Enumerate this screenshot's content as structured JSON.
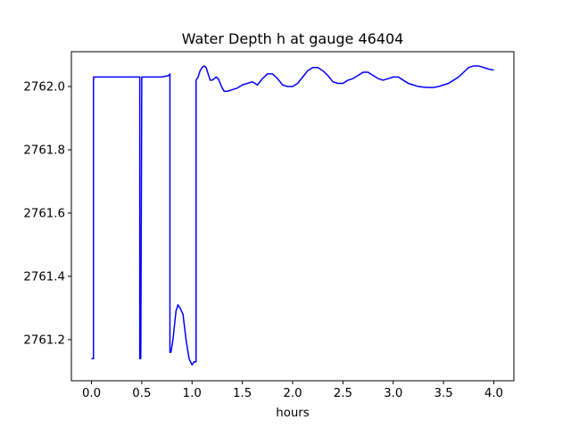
{
  "chart_data": {
    "type": "line",
    "title": "Water Depth h at gauge 46404",
    "xlabel": "hours",
    "ylabel": "",
    "xlim": [
      -0.2,
      4.2
    ],
    "ylim": [
      2761.07,
      2762.11
    ],
    "xticks": [
      0.0,
      0.5,
      1.0,
      1.5,
      2.0,
      2.5,
      3.0,
      3.5,
      4.0
    ],
    "xtick_labels": [
      "0.0",
      "0.5",
      "1.0",
      "1.5",
      "2.0",
      "2.5",
      "3.0",
      "3.5",
      "4.0"
    ],
    "yticks": [
      2761.2,
      2761.4,
      2761.6,
      2761.8,
      2762.0
    ],
    "ytick_labels": [
      "2761.2",
      "2761.4",
      "2761.6",
      "2761.8",
      "2762.0"
    ],
    "grid": false,
    "line_color": "#0000ff",
    "series": [
      {
        "x": [
          0.0,
          0.02,
          0.02,
          0.47,
          0.48,
          0.48,
          0.49,
          0.5,
          0.51,
          0.52,
          0.6,
          0.7,
          0.77,
          0.78,
          0.78,
          0.79,
          0.81,
          0.84,
          0.86,
          0.88,
          0.91,
          0.94,
          0.97,
          1.0,
          1.02,
          1.04,
          1.04,
          1.06,
          1.08,
          1.1,
          1.12,
          1.14,
          1.16,
          1.18,
          1.2,
          1.22,
          1.24,
          1.26,
          1.28,
          1.3,
          1.32,
          1.35,
          1.4,
          1.45,
          1.5,
          1.55,
          1.6,
          1.65,
          1.7,
          1.75,
          1.8,
          1.85,
          1.9,
          1.95,
          2.0,
          2.05,
          2.1,
          2.15,
          2.2,
          2.25,
          2.3,
          2.35,
          2.4,
          2.45,
          2.5,
          2.55,
          2.6,
          2.65,
          2.7,
          2.75,
          2.8,
          2.85,
          2.9,
          2.95,
          3.0,
          3.05,
          3.1,
          3.15,
          3.2,
          3.25,
          3.3,
          3.35,
          3.4,
          3.45,
          3.5,
          3.55,
          3.6,
          3.65,
          3.7,
          3.75,
          3.8,
          3.85,
          3.9,
          3.95,
          4.0
        ],
        "y": [
          2761.14,
          2761.14,
          2762.03,
          2762.03,
          2762.03,
          2761.14,
          2761.14,
          2762.03,
          2762.03,
          2762.03,
          2762.03,
          2762.03,
          2762.035,
          2762.04,
          2761.16,
          2761.16,
          2761.2,
          2761.29,
          2761.31,
          2761.3,
          2761.28,
          2761.2,
          2761.14,
          2761.12,
          2761.13,
          2761.13,
          2762.02,
          2762.03,
          2762.05,
          2762.06,
          2762.065,
          2762.06,
          2762.04,
          2762.02,
          2762.02,
          2762.025,
          2762.03,
          2762.025,
          2762.01,
          2761.995,
          2761.985,
          2761.985,
          2761.99,
          2761.995,
          2762.005,
          2762.01,
          2762.015,
          2762.005,
          2762.025,
          2762.04,
          2762.04,
          2762.025,
          2762.005,
          2762.0,
          2762.0,
          2762.01,
          2762.03,
          2762.05,
          2762.06,
          2762.06,
          2762.05,
          2762.035,
          2762.015,
          2762.01,
          2762.01,
          2762.02,
          2762.025,
          2762.035,
          2762.045,
          2762.045,
          2762.035,
          2762.025,
          2762.02,
          2762.025,
          2762.03,
          2762.03,
          2762.02,
          2762.01,
          2762.005,
          2762.0,
          2761.998,
          2761.997,
          2761.997,
          2762.0,
          2762.005,
          2762.01,
          2762.02,
          2762.03,
          2762.045,
          2762.06,
          2762.065,
          2762.065,
          2762.06,
          2762.055,
          2762.052
        ]
      }
    ]
  }
}
